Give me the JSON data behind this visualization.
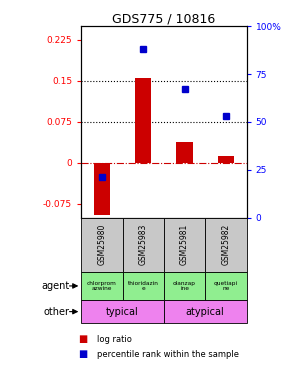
{
  "title": "GDS775 / 10816",
  "samples": [
    "GSM25980",
    "GSM25983",
    "GSM25981",
    "GSM25982"
  ],
  "log_ratios": [
    -0.095,
    0.155,
    0.038,
    0.013
  ],
  "percentile_ranks": [
    0.21,
    0.88,
    0.67,
    0.53
  ],
  "ylim_left": [
    -0.1,
    0.25
  ],
  "ylim_right": [
    0,
    1.0
  ],
  "yticks_left": [
    -0.075,
    0,
    0.075,
    0.15,
    0.225
  ],
  "ytick_labels_left": [
    "-0.075",
    "0",
    "0.075",
    "0.15",
    "0.225"
  ],
  "yticks_right": [
    0,
    0.25,
    0.5,
    0.75,
    1.0
  ],
  "ytick_labels_right": [
    "0",
    "25",
    "50",
    "75",
    "100%"
  ],
  "hlines": [
    0.075,
    0.15
  ],
  "agent_labels": [
    "chlorprom\nazwine",
    "thioridazin\ne",
    "olanzap\nine",
    "quetiapi\nne"
  ],
  "bar_color_red": "#cc0000",
  "bar_color_blue": "#0000cc",
  "zero_line_color": "#cc0000",
  "bg_gray": "#c8c8c8",
  "bg_green": "#90ee90",
  "bg_pink": "#ee82ee"
}
